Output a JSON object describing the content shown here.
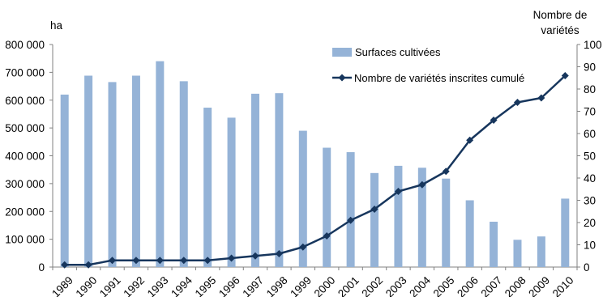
{
  "chart_data": {
    "type": "bar",
    "categories": [
      "1989",
      "1990",
      "1991",
      "1992",
      "1993",
      "1994",
      "1995",
      "1996",
      "1997",
      "1998",
      "1999",
      "2000",
      "2001",
      "2002",
      "2003",
      "2004",
      "2005",
      "2006",
      "2007",
      "2008",
      "2009",
      "2010"
    ],
    "series": [
      {
        "name": "Surfaces cultivées",
        "type": "bar",
        "axis": "left",
        "color": "#95b3d7",
        "values": [
          620000,
          688000,
          665000,
          688000,
          740000,
          668000,
          573000,
          537000,
          623000,
          625000,
          490000,
          429000,
          413000,
          338000,
          364000,
          357000,
          318000,
          240000,
          163000,
          98000,
          110000,
          246000
        ]
      },
      {
        "name": "Nombre de variétés inscrites cumulé",
        "type": "line",
        "axis": "right",
        "color": "#17365d",
        "values": [
          1,
          1,
          3,
          3,
          3,
          3,
          3,
          4,
          5,
          6,
          9,
          14,
          21,
          26,
          34,
          37,
          43,
          57,
          66,
          74,
          76,
          86
        ]
      }
    ],
    "ylabel_left": "ha",
    "ylabel_right_line1": "Nombre de",
    "ylabel_right_line2": "variétés",
    "ylim_left": [
      0,
      800000
    ],
    "ylim_right": [
      0,
      100
    ],
    "left_ticks": [
      "0",
      "100 000",
      "200 000",
      "300 000",
      "400 000",
      "500 000",
      "600 000",
      "700 000",
      "800 000"
    ],
    "right_ticks": [
      "0",
      "10",
      "20",
      "30",
      "40",
      "50",
      "60",
      "70",
      "80",
      "90",
      "100"
    ],
    "grid": false,
    "legend_position": "top-right"
  }
}
